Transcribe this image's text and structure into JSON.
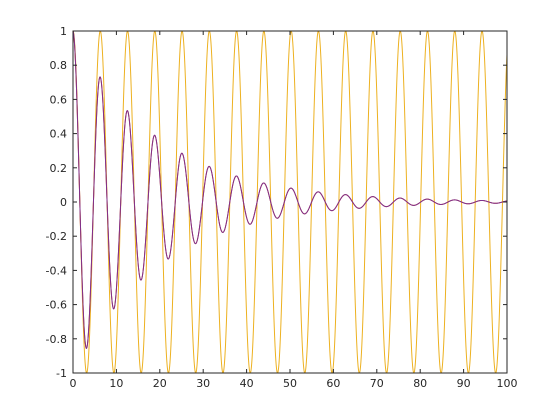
{
  "chart_data": {
    "type": "line",
    "title": "",
    "xlabel": "",
    "ylabel": "",
    "xlim": [
      0,
      100
    ],
    "ylim": [
      -1,
      1
    ],
    "x_ticks": [
      "0",
      "10",
      "20",
      "30",
      "40",
      "50",
      "60",
      "70",
      "80",
      "90",
      "100"
    ],
    "y_ticks": [
      "1",
      "0.8",
      "0.6",
      "0.4",
      "0.2",
      "0",
      "-0.2",
      "-0.4",
      "-0.6",
      "-0.8",
      "-1"
    ],
    "grid": false,
    "legend": false,
    "series": [
      {
        "color": "#edb120",
        "function": "cos(x)",
        "x_range": [
          0,
          100
        ],
        "sample_values": [
          {
            "x": 0,
            "y": 1
          },
          {
            "x": 3.14,
            "y": -1
          },
          {
            "x": 6.28,
            "y": 1
          },
          {
            "x": 9.42,
            "y": -1
          },
          {
            "x": 12.57,
            "y": 1
          },
          {
            "x": 50.27,
            "y": 1
          },
          {
            "x": 100,
            "y": 0.86
          }
        ]
      },
      {
        "color": "#d95319",
        "function": "exp(-x/20)*cos(x)",
        "x_range": [
          0,
          100
        ],
        "sample_values": [
          {
            "x": 0,
            "y": 1
          },
          {
            "x": 3.14,
            "y": -0.85
          },
          {
            "x": 6.28,
            "y": 0.73
          },
          {
            "x": 9.42,
            "y": -0.62
          },
          {
            "x": 12.57,
            "y": 0.53
          },
          {
            "x": 18.85,
            "y": 0.39
          },
          {
            "x": 25.13,
            "y": 0.28
          },
          {
            "x": 31.42,
            "y": 0.21
          },
          {
            "x": 37.7,
            "y": 0.15
          },
          {
            "x": 50.27,
            "y": 0.08
          }
        ]
      },
      {
        "color": "#7e2f8e",
        "function": "exp(-x/20)*cos(x)",
        "x_range": [
          0,
          100
        ],
        "sample_values": [
          {
            "x": 0,
            "y": 1
          },
          {
            "x": 3.14,
            "y": -0.85
          },
          {
            "x": 6.28,
            "y": 0.73
          },
          {
            "x": 9.42,
            "y": -0.62
          },
          {
            "x": 12.57,
            "y": 0.53
          },
          {
            "x": 18.85,
            "y": 0.39
          },
          {
            "x": 25.13,
            "y": 0.28
          },
          {
            "x": 31.42,
            "y": 0.21
          },
          {
            "x": 37.7,
            "y": 0.15
          },
          {
            "x": 50.27,
            "y": 0.08
          }
        ]
      }
    ]
  }
}
